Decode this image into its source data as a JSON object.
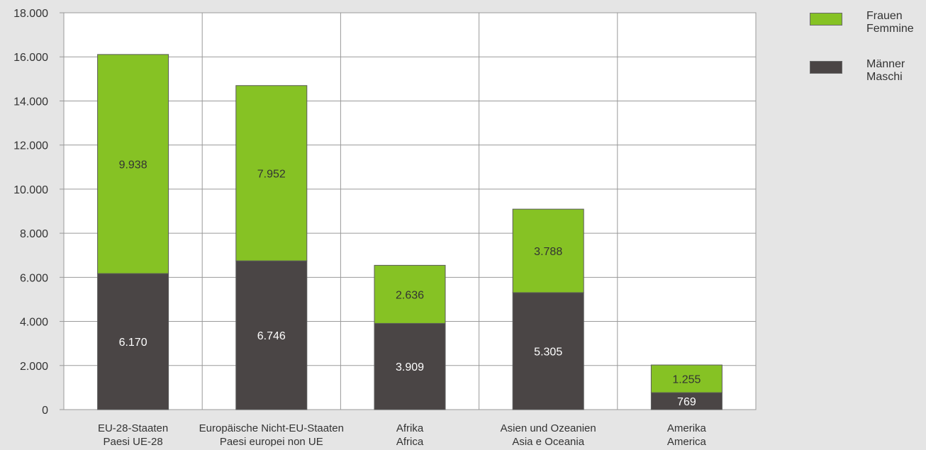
{
  "chart_data": {
    "type": "bar",
    "stacked": true,
    "categories": [
      [
        "EU-28-Staaten",
        "Paesi UE-28"
      ],
      [
        "Europäische Nicht-EU-Staaten",
        "Paesi europei non UE"
      ],
      [
        "Afrika",
        "Africa"
      ],
      [
        "Asien und Ozeanien",
        "Asia e Oceania"
      ],
      [
        "Amerika",
        "America"
      ]
    ],
    "series": [
      {
        "name": [
          "Männer",
          "Maschi"
        ],
        "values": [
          6170,
          6746,
          3909,
          5305,
          769
        ],
        "labels": [
          "6.170",
          "6.746",
          "3.909",
          "5.305",
          "769"
        ],
        "color": "#4a4545",
        "label_color": "#ffffff"
      },
      {
        "name": [
          "Frauen",
          "Femmine"
        ],
        "values": [
          9938,
          7952,
          2636,
          3788,
          1255
        ],
        "labels": [
          "9.938",
          "7.952",
          "2.636",
          "3.788",
          "1.255"
        ],
        "color": "#86c224",
        "label_color": "#333333"
      }
    ],
    "legend_order": [
      1,
      0
    ],
    "ylim": [
      0,
      18000
    ],
    "yticks": [
      0,
      2000,
      4000,
      6000,
      8000,
      10000,
      12000,
      14000,
      16000,
      18000
    ],
    "ytick_labels": [
      "0",
      "2.000",
      "4.000",
      "6.000",
      "8.000",
      "10.000",
      "12.000",
      "14.000",
      "16.000",
      "18.000"
    ],
    "grid": true,
    "legend_position": "right",
    "colors": {
      "background": "#e5e5e5",
      "plot_background": "#ffffff",
      "grid": "#9a9a9a",
      "text": "#333333"
    }
  }
}
